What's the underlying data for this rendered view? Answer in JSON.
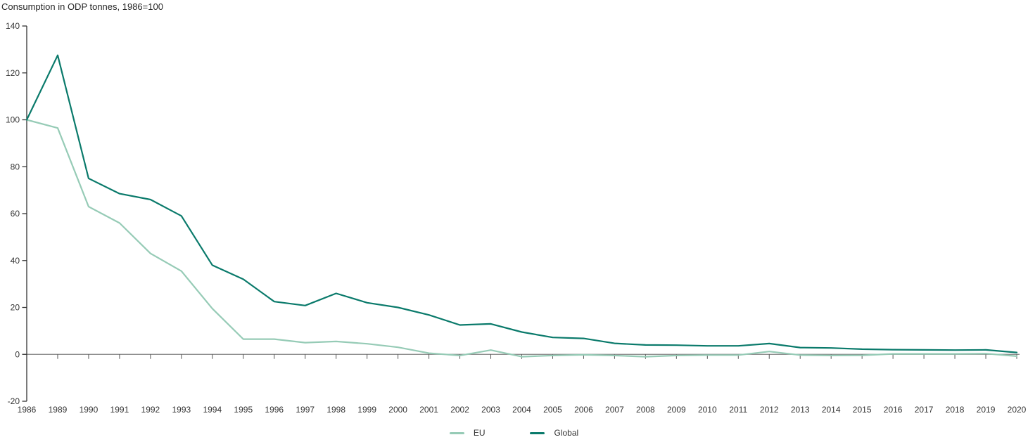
{
  "chart_data": {
    "type": "line",
    "title": "Consumption in ODP tonnes, 1986=100",
    "xlabel": "",
    "ylabel": "",
    "grid": false,
    "legend_position": "bottom-center",
    "ylim": [
      -20,
      140
    ],
    "ytick_step": 20,
    "zero_line": true,
    "axis_color": "#333333",
    "zero_line_color": "#808080",
    "tick_color": "#555555",
    "text_color": "#333333",
    "categories": [
      "1986",
      "1989",
      "1990",
      "1991",
      "1992",
      "1993",
      "1994",
      "1995",
      "1996",
      "1997",
      "1998",
      "1999",
      "2000",
      "2001",
      "2002",
      "2003",
      "2004",
      "2005",
      "2006",
      "2007",
      "2008",
      "2009",
      "2010",
      "2011",
      "2012",
      "2013",
      "2014",
      "2015",
      "2016",
      "2017",
      "2018",
      "2019",
      "2020"
    ],
    "series": [
      {
        "name": "EU",
        "color": "#96cbb6",
        "values": [
          100,
          96.5,
          63,
          56,
          43,
          35.5,
          19.5,
          6.5,
          6.5,
          5,
          5.5,
          4.5,
          3,
          0.5,
          -0.5,
          1.8,
          -1,
          -0.5,
          -0.2,
          -0.5,
          -1,
          -0.5,
          -0.3,
          -0.3,
          1.2,
          -0.3,
          -0.5,
          -0.4,
          0.2,
          0.2,
          0.2,
          0.3,
          -0.8
        ]
      },
      {
        "name": "Global",
        "color": "#0a7a6b",
        "values": [
          100,
          127.5,
          75,
          68.5,
          66,
          59,
          38,
          32,
          22.5,
          20.8,
          26,
          22,
          20,
          16.8,
          12.5,
          13,
          9.5,
          7.2,
          6.8,
          4.7,
          4,
          3.9,
          3.6,
          3.6,
          4.6,
          2.9,
          2.7,
          2.2,
          2,
          1.9,
          1.8,
          1.9,
          0.8
        ]
      }
    ]
  }
}
